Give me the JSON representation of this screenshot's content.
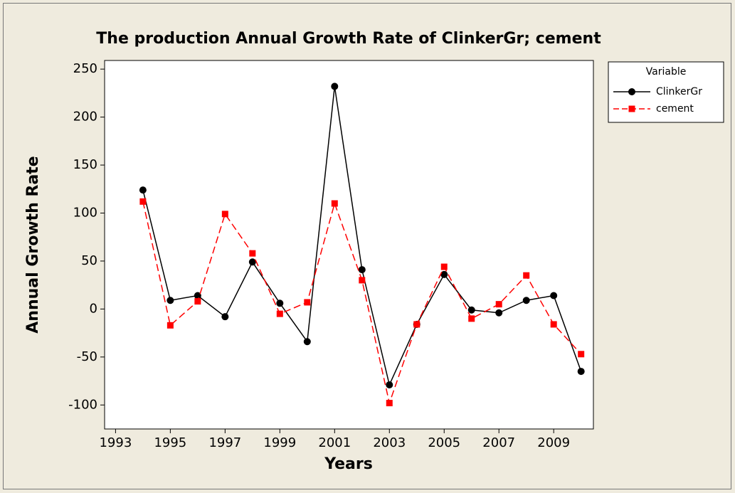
{
  "chart_data": {
    "type": "line",
    "title": "The production Annual Growth Rate of ClinkerGr; cement",
    "xlabel": "Years",
    "ylabel": "Annual Growth Rate",
    "x": [
      1994,
      1995,
      1996,
      1997,
      1998,
      1999,
      2000,
      2001,
      2002,
      2003,
      2004,
      2005,
      2006,
      2007,
      2008,
      2009,
      2010
    ],
    "series": [
      {
        "name": "ClinkerGr",
        "color": "#000000",
        "marker": "circle",
        "dash": false,
        "values": [
          124,
          9,
          14,
          -8,
          49,
          6,
          -34,
          232,
          41,
          -79,
          -16,
          36,
          -1,
          -4,
          9,
          14,
          -65
        ]
      },
      {
        "name": "cement",
        "color": "#ff0000",
        "marker": "square",
        "dash": true,
        "values": [
          112,
          -17,
          8,
          99,
          58,
          -5,
          7,
          110,
          30,
          -98,
          -16,
          44,
          -10,
          5,
          35,
          -16,
          -47
        ]
      }
    ],
    "xlim": [
      1992.6,
      2010.45
    ],
    "xticks": [
      1993,
      1995,
      1997,
      1999,
      2001,
      2003,
      2005,
      2007,
      2009
    ],
    "ylim": [
      -125,
      259
    ],
    "yticks": [
      -100,
      -50,
      0,
      50,
      100,
      150,
      200,
      250
    ],
    "legend_title": "Variable",
    "legend": "outside-top-right",
    "grid": false
  }
}
